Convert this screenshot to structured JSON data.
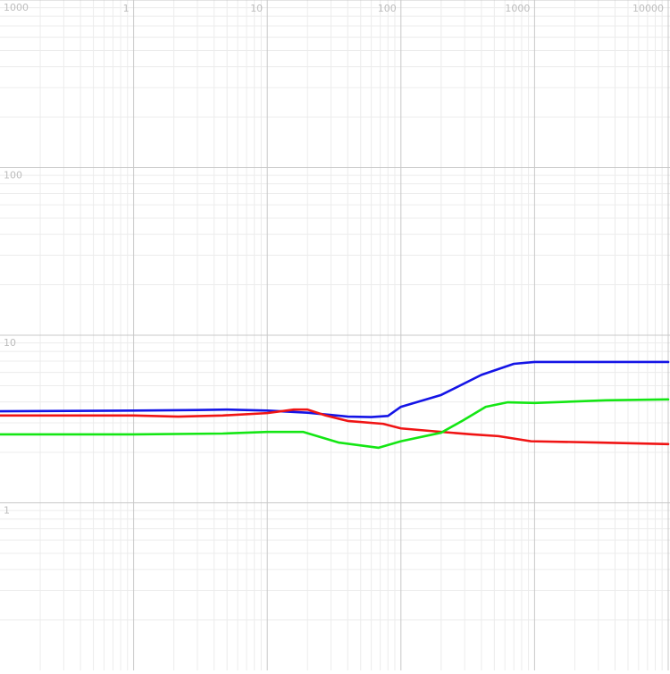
{
  "chart_data": {
    "type": "line",
    "x_log": true,
    "y_log": true,
    "grid": true,
    "xlim": [
      0.1,
      10000
    ],
    "ylim": [
      0.1,
      1000
    ],
    "xticks": [
      1,
      10,
      100,
      1000,
      10000
    ],
    "yticks": [
      1,
      10,
      100,
      1000
    ],
    "series": [
      {
        "color": "#1414e6",
        "x": [
          0.1,
          1,
          3,
          5,
          10,
          20,
          40,
          60,
          80,
          100,
          200,
          400,
          700,
          1000,
          10000
        ],
        "values": [
          3.52,
          3.55,
          3.58,
          3.6,
          3.55,
          3.45,
          3.27,
          3.25,
          3.3,
          3.74,
          4.4,
          5.8,
          6.75,
          6.92,
          6.92
        ]
      },
      {
        "color": "#f01414",
        "x": [
          0.1,
          1,
          2.15,
          4.64,
          10,
          15.8,
          20,
          27.3,
          40,
          73.6,
          100,
          200,
          341,
          536,
          940,
          2980,
          10000
        ],
        "values": [
          3.32,
          3.32,
          3.27,
          3.32,
          3.43,
          3.6,
          3.6,
          3.32,
          3.08,
          2.96,
          2.78,
          2.65,
          2.56,
          2.5,
          2.33,
          2.29,
          2.24
        ]
      },
      {
        "color": "#14e614",
        "x": [
          0.1,
          1,
          4.64,
          10,
          18.5,
          34.1,
          68.1,
          100,
          200,
          293,
          431,
          631,
          1000,
          3420,
          10000
        ],
        "values": [
          2.56,
          2.56,
          2.59,
          2.65,
          2.65,
          2.29,
          2.13,
          2.33,
          2.62,
          3.11,
          3.74,
          3.98,
          3.94,
          4.09,
          4.14
        ]
      }
    ]
  }
}
